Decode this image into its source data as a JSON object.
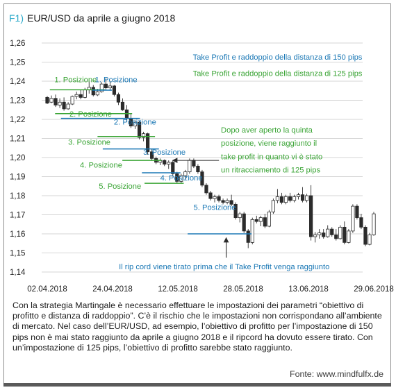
{
  "title": {
    "tag": "F1)",
    "text": "EUR/USD da aprile a giugno 2018"
  },
  "chart_data": {
    "type": "candlestick",
    "x_tick_labels": [
      "02.04.2018",
      "24.04.2018",
      "12.05.2018",
      "28.05.2018",
      "13.06.2018",
      "29.06.2018"
    ],
    "y_tick_labels": [
      "1,26",
      "1,25",
      "1,24",
      "1,23",
      "1,22",
      "1,21",
      "1,20",
      "1,19",
      "1,18",
      "1,17",
      "1,16",
      "1,15",
      "1,14"
    ],
    "ylim": [
      1.14,
      1.26
    ],
    "grid": "horizontal",
    "colors": {
      "green": "#3aa435",
      "blue": "#1b78b5",
      "grid": "#c9c9c9",
      "tick": "#1a1a1a"
    },
    "candles": [
      [
        1.2315,
        1.2322,
        1.228,
        1.2285
      ],
      [
        1.229,
        1.2325,
        1.2285,
        1.231
      ],
      [
        1.231,
        1.233,
        1.2265,
        1.2275
      ],
      [
        1.2275,
        1.231,
        1.226,
        1.229
      ],
      [
        1.229,
        1.2315,
        1.2245,
        1.2255
      ],
      [
        1.2255,
        1.229,
        1.225,
        1.228
      ],
      [
        1.228,
        1.2325,
        1.2275,
        1.232
      ],
      [
        1.232,
        1.2345,
        1.2305,
        1.233
      ],
      [
        1.233,
        1.2355,
        1.2305,
        1.2315
      ],
      [
        1.2315,
        1.2365,
        1.231,
        1.2355
      ],
      [
        1.2355,
        1.2398,
        1.2335,
        1.2368
      ],
      [
        1.2368,
        1.238,
        1.232,
        1.2328
      ],
      [
        1.2328,
        1.236,
        1.2322,
        1.2345
      ],
      [
        1.2345,
        1.2395,
        1.234,
        1.2385
      ],
      [
        1.2385,
        1.2415,
        1.2355,
        1.2365
      ],
      [
        1.2365,
        1.24,
        1.235,
        1.2375
      ],
      [
        1.2375,
        1.238,
        1.232,
        1.233
      ],
      [
        1.233,
        1.234,
        1.2275,
        1.229
      ],
      [
        1.229,
        1.231,
        1.2245,
        1.225
      ],
      [
        1.225,
        1.2275,
        1.2185,
        1.2205
      ],
      [
        1.2205,
        1.223,
        1.2155,
        1.2165
      ],
      [
        1.2165,
        1.2195,
        1.215,
        1.2185
      ],
      [
        1.2185,
        1.2192,
        1.2095,
        1.2105
      ],
      [
        1.2105,
        1.2135,
        1.2085,
        1.2125
      ],
      [
        1.2125,
        1.213,
        1.2015,
        1.203
      ],
      [
        1.203,
        1.2045,
        1.1985,
        1.1995
      ],
      [
        1.1995,
        1.2005,
        1.1965,
        1.1975
      ],
      [
        1.1975,
        1.1995,
        1.196,
        1.1985
      ],
      [
        1.1985,
        1.199,
        1.1955,
        1.1965
      ],
      [
        1.1965,
        1.1985,
        1.194,
        1.1975
      ],
      [
        1.1975,
        1.1985,
        1.1905,
        1.1915
      ],
      [
        1.1915,
        1.1925,
        1.1865,
        1.1875
      ],
      [
        1.1875,
        1.1915,
        1.1865,
        1.1905
      ],
      [
        1.1905,
        1.1935,
        1.1885,
        1.1925
      ],
      [
        1.1925,
        1.1995,
        1.1915,
        1.1985
      ],
      [
        1.1985,
        1.1995,
        1.1945,
        1.1955
      ],
      [
        1.1955,
        1.1965,
        1.1915,
        1.1925
      ],
      [
        1.1925,
        1.1935,
        1.1845,
        1.1855
      ],
      [
        1.1855,
        1.1865,
        1.1805,
        1.1815
      ],
      [
        1.1815,
        1.1825,
        1.1775,
        1.1785
      ],
      [
        1.1785,
        1.1805,
        1.1765,
        1.1795
      ],
      [
        1.1795,
        1.1805,
        1.1765,
        1.1775
      ],
      [
        1.1775,
        1.1785,
        1.1755,
        1.1765
      ],
      [
        1.1765,
        1.1785,
        1.1755,
        1.1775
      ],
      [
        1.1775,
        1.1805,
        1.1745,
        1.1755
      ],
      [
        1.1755,
        1.1765,
        1.1675,
        1.1685
      ],
      [
        1.1685,
        1.1715,
        1.166,
        1.1705
      ],
      [
        1.1705,
        1.1715,
        1.1605,
        1.1615
      ],
      [
        1.1615,
        1.1625,
        1.1525,
        1.1555
      ],
      [
        1.1555,
        1.1685,
        1.1545,
        1.1675
      ],
      [
        1.1675,
        1.1695,
        1.1655,
        1.1665
      ],
      [
        1.1665,
        1.1695,
        1.164,
        1.1685
      ],
      [
        1.1685,
        1.1705,
        1.163,
        1.164
      ],
      [
        1.164,
        1.1725,
        1.1635,
        1.1715
      ],
      [
        1.1715,
        1.1785,
        1.1705,
        1.1775
      ],
      [
        1.1775,
        1.1835,
        1.176,
        1.1795
      ],
      [
        1.1795,
        1.1815,
        1.1755,
        1.1765
      ],
      [
        1.1765,
        1.1805,
        1.1755,
        1.1795
      ],
      [
        1.1795,
        1.1815,
        1.1765,
        1.1775
      ],
      [
        1.1775,
        1.1805,
        1.1765,
        1.1795
      ],
      [
        1.1795,
        1.1815,
        1.178,
        1.1805
      ],
      [
        1.1805,
        1.1845,
        1.1765,
        1.1775
      ],
      [
        1.1775,
        1.181,
        1.1765,
        1.18
      ],
      [
        1.18,
        1.1855,
        1.1565,
        1.1585
      ],
      [
        1.1585,
        1.161,
        1.1555,
        1.1595
      ],
      [
        1.1595,
        1.1625,
        1.1575,
        1.1605
      ],
      [
        1.1605,
        1.1625,
        1.1575,
        1.1585
      ],
      [
        1.1585,
        1.1645,
        1.158,
        1.1625
      ],
      [
        1.1625,
        1.1635,
        1.1585,
        1.1595
      ],
      [
        1.1595,
        1.1625,
        1.1565,
        1.1575
      ],
      [
        1.1575,
        1.1645,
        1.157,
        1.1635
      ],
      [
        1.1635,
        1.1665,
        1.1545,
        1.1555
      ],
      [
        1.1555,
        1.1625,
        1.155,
        1.1615
      ],
      [
        1.1615,
        1.1755,
        1.1605,
        1.1745
      ],
      [
        1.1745,
        1.1755,
        1.1675,
        1.1685
      ],
      [
        1.1685,
        1.1705,
        1.1625,
        1.1635
      ],
      [
        1.1635,
        1.1645,
        1.1535,
        1.1545
      ],
      [
        1.1545,
        1.1605,
        1.154,
        1.1595
      ],
      [
        1.1595,
        1.1715,
        1.159,
        1.1705
      ]
    ],
    "levels": [
      {
        "color": "green",
        "price": 1.2355,
        "from": 0.04,
        "to": 0.88
      },
      {
        "color": "blue",
        "price": 1.2353,
        "from": 0.69,
        "to": 0.99
      },
      {
        "color": "green",
        "price": 1.223,
        "from": 0.12,
        "to": 1.3
      },
      {
        "color": "blue",
        "price": 1.2205,
        "from": 0.21,
        "to": 1.42
      },
      {
        "color": "green",
        "price": 1.211,
        "from": 0.77,
        "to": 1.65
      },
      {
        "color": "blue",
        "price": 1.2045,
        "from": 0.85,
        "to": 1.71
      },
      {
        "color": "green",
        "price": 1.1985,
        "from": 1.15,
        "to": 1.75
      },
      {
        "color": "blue",
        "price": 1.192,
        "from": 1.45,
        "to": 2.04
      },
      {
        "color": "green",
        "price": 1.1865,
        "from": 1.49,
        "to": 2.09
      },
      {
        "color": "blue",
        "price": 1.16,
        "from": 2.15,
        "to": 3.13
      }
    ],
    "annotations": [
      {
        "text": "Take Profit e raddoppio della distanza di 150 pips",
        "color": "blue",
        "x": 2.23,
        "y": 1.2512,
        "anchor": "start"
      },
      {
        "text": "Take Profit e raddoppio della distanza di 125 pips",
        "color": "green",
        "x": 2.23,
        "y": 1.2427,
        "anchor": "start"
      },
      {
        "text": "1. Posizione",
        "color": "green",
        "x": 0.11,
        "y": 1.2394,
        "anchor": "start"
      },
      {
        "text": "1. Posizione",
        "color": "blue",
        "x": 0.73,
        "y": 1.2394,
        "anchor": "start"
      },
      {
        "text": "2. Posizione",
        "color": "green",
        "x": 0.34,
        "y": 1.2215,
        "anchor": "start"
      },
      {
        "text": "2. Posizione",
        "color": "blue",
        "x": 1.02,
        "y": 1.2172,
        "anchor": "start"
      },
      {
        "text": "3. Posizione",
        "color": "green",
        "x": 0.32,
        "y": 1.2067,
        "anchor": "start"
      },
      {
        "text": "3. Posizione",
        "color": "blue",
        "x": 1.47,
        "y": 1.2015,
        "anchor": "start"
      },
      {
        "text": "4. Posizione",
        "color": "green",
        "x": 0.5,
        "y": 1.1947,
        "anchor": "start"
      },
      {
        "text": "4. Posizione",
        "color": "blue",
        "x": 1.73,
        "y": 1.188,
        "anchor": "start"
      },
      {
        "text": "5. Posizione",
        "color": "green",
        "x": 0.79,
        "y": 1.1837,
        "anchor": "start"
      },
      {
        "text": "5. Posizione",
        "color": "blue",
        "x": 2.24,
        "y": 1.1725,
        "anchor": "start"
      },
      {
        "text": "Dopo aver aperto la quinta",
        "color": "green",
        "x": 2.66,
        "y": 1.2131,
        "anchor": "start"
      },
      {
        "text": "posizione, viene raggiunto il",
        "color": "green",
        "x": 2.66,
        "y": 1.2061,
        "anchor": "start"
      },
      {
        "text": "take profit in quanto vi è stato",
        "color": "green",
        "x": 2.66,
        "y": 1.1991,
        "anchor": "start"
      },
      {
        "text": "un ritracciamento di 125 pips",
        "color": "green",
        "x": 2.66,
        "y": 1.1921,
        "anchor": "start"
      },
      {
        "text": "Il rip cord viene tirato prima che il Take Profit venga raggiunto",
        "color": "blue",
        "x": 2.71,
        "y": 1.1415,
        "anchor": "middle"
      }
    ],
    "arrows": [
      {
        "from": [
          2.63,
          1.1985
        ],
        "to": [
          1.92,
          1.1985
        ]
      },
      {
        "from": [
          2.74,
          1.1475
        ],
        "to": [
          2.74,
          1.158
        ]
      }
    ]
  },
  "caption": "Con la strategia Martingale è necessario effettuare le impostazioni dei parametri “obiettivo di profitto e distanza di raddoppio”. C’è il rischio che le impostazioni non corrispondano all’ambiente di mercato. Nel caso dell’EUR/USD, ad esempio, l’obiettivo di profitto per l’impostazione di 150 pips non è mai stato raggiunto da aprile a giugno 2018 e il ripcord ha dovuto essere tirato. Con un’impostazione di 125 pips, l’obiettivo di profitto sarebbe stato raggiunto.",
  "source": "Fonte:  www.mindfulfx.de"
}
